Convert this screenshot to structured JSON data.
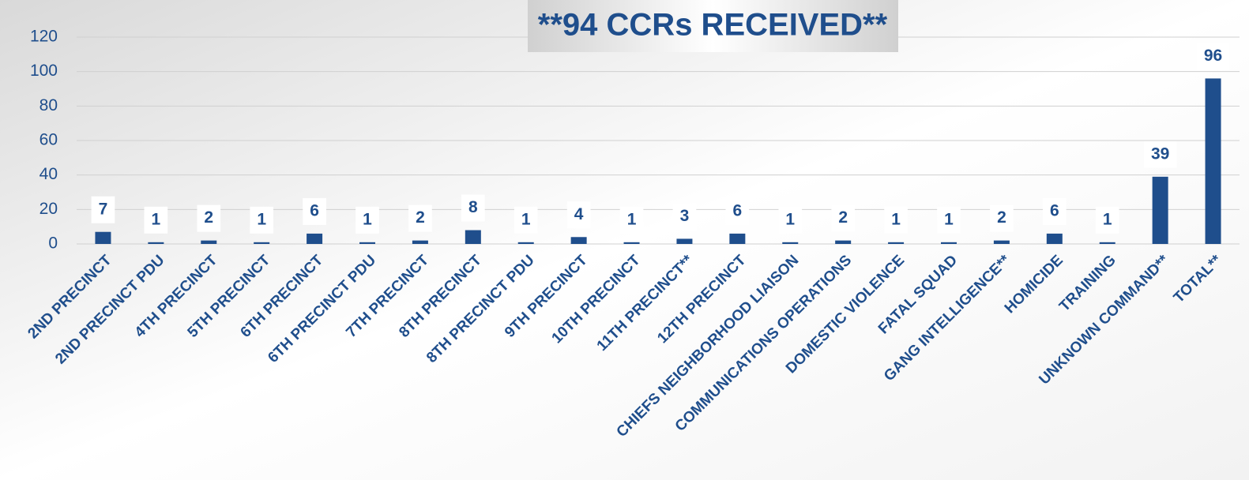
{
  "chart_data": {
    "type": "bar",
    "title": "**94 CCRs RECEIVED**",
    "categories": [
      "2ND PRECINCT",
      "2ND PRECINCT PDU",
      "4TH PRECINCT",
      "5TH PRECINCT",
      "6TH PRECINCT",
      "6TH PRECINCT PDU",
      "7TH PRECINCT",
      "8TH PRECINCT",
      "8TH PRECINCT PDU",
      "9TH PRECINCT",
      "10TH PRECINCT",
      "11TH PRECINCT**",
      "12TH PRECINCT",
      "CHIEFS NEIGHBORHOOD LIAISON",
      "COMMUNICATIONS OPERATIONS",
      "DOMESTIC VIOLENCE",
      "FATAL SQUAD",
      "GANG INTELLIGENCE**",
      "HOMICIDE",
      "TRAINING",
      "UNKNOWN COMMAND**",
      "TOTAL**"
    ],
    "values": [
      7,
      1,
      2,
      1,
      6,
      1,
      2,
      8,
      1,
      4,
      1,
      3,
      6,
      1,
      2,
      1,
      1,
      2,
      6,
      1,
      39,
      96
    ],
    "color": "#1f4e8c",
    "ylim": [
      0,
      120
    ],
    "yticks": [
      0,
      20,
      40,
      60,
      80,
      100,
      120
    ],
    "grid": true
  }
}
